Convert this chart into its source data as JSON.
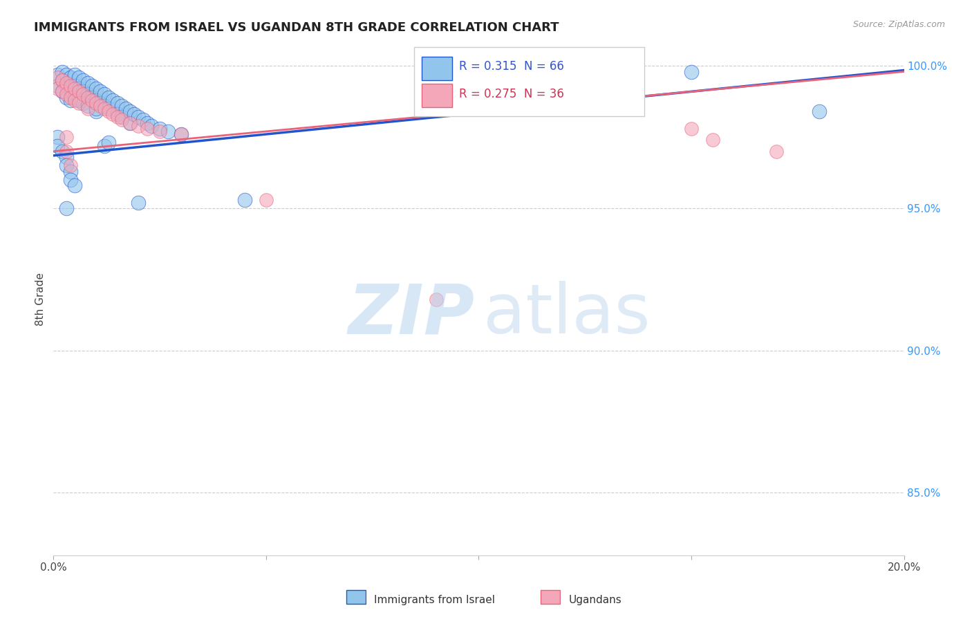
{
  "title": "IMMIGRANTS FROM ISRAEL VS UGANDAN 8TH GRADE CORRELATION CHART",
  "source": "Source: ZipAtlas.com",
  "ylabel": "8th Grade",
  "legend_label1": "Immigrants from Israel",
  "legend_label2": "Ugandans",
  "R1": 0.315,
  "N1": 66,
  "R2": 0.275,
  "N2": 36,
  "blue_color": "#92C5EC",
  "pink_color": "#F4A7B9",
  "blue_line_color": "#2255CC",
  "pink_line_color": "#E8637A",
  "xlim": [
    0.0,
    0.2
  ],
  "ylim": [
    0.828,
    1.008
  ],
  "y_tick_positions": [
    0.85,
    0.9,
    0.95,
    1.0
  ],
  "y_tick_labels": [
    "85.0%",
    "90.0%",
    "95.0%",
    "100.0%"
  ],
  "x_tick_positions": [
    0.0,
    0.05,
    0.1,
    0.15,
    0.2
  ],
  "x_tick_labels": [
    "0.0%",
    "",
    "",
    "",
    "20.0%"
  ],
  "blue_scatter_x": [
    0.001,
    0.001,
    0.002,
    0.002,
    0.002,
    0.003,
    0.003,
    0.003,
    0.004,
    0.004,
    0.004,
    0.005,
    0.005,
    0.005,
    0.006,
    0.006,
    0.006,
    0.007,
    0.007,
    0.007,
    0.008,
    0.008,
    0.008,
    0.009,
    0.009,
    0.01,
    0.01,
    0.01,
    0.011,
    0.011,
    0.012,
    0.012,
    0.013,
    0.013,
    0.014,
    0.015,
    0.015,
    0.016,
    0.016,
    0.017,
    0.018,
    0.018,
    0.019,
    0.02,
    0.021,
    0.022,
    0.023,
    0.025,
    0.027,
    0.03,
    0.001,
    0.001,
    0.002,
    0.003,
    0.003,
    0.004,
    0.004,
    0.005,
    0.01,
    0.012,
    0.003,
    0.013,
    0.02,
    0.045,
    0.15,
    0.18
  ],
  "blue_scatter_y": [
    0.997,
    0.993,
    0.998,
    0.995,
    0.991,
    0.997,
    0.993,
    0.989,
    0.996,
    0.992,
    0.988,
    0.997,
    0.993,
    0.989,
    0.996,
    0.992,
    0.988,
    0.995,
    0.991,
    0.987,
    0.994,
    0.99,
    0.986,
    0.993,
    0.989,
    0.992,
    0.988,
    0.984,
    0.991,
    0.987,
    0.99,
    0.986,
    0.989,
    0.985,
    0.988,
    0.987,
    0.983,
    0.986,
    0.982,
    0.985,
    0.984,
    0.98,
    0.983,
    0.982,
    0.981,
    0.98,
    0.979,
    0.978,
    0.977,
    0.976,
    0.975,
    0.972,
    0.97,
    0.968,
    0.965,
    0.963,
    0.96,
    0.958,
    0.985,
    0.972,
    0.95,
    0.973,
    0.952,
    0.953,
    0.998,
    0.984
  ],
  "pink_scatter_x": [
    0.001,
    0.001,
    0.002,
    0.002,
    0.003,
    0.003,
    0.004,
    0.004,
    0.005,
    0.005,
    0.006,
    0.006,
    0.007,
    0.008,
    0.008,
    0.009,
    0.01,
    0.011,
    0.012,
    0.013,
    0.014,
    0.015,
    0.016,
    0.018,
    0.02,
    0.022,
    0.025,
    0.03,
    0.003,
    0.003,
    0.004,
    0.05,
    0.09,
    0.15,
    0.155,
    0.17
  ],
  "pink_scatter_y": [
    0.996,
    0.992,
    0.995,
    0.991,
    0.994,
    0.99,
    0.993,
    0.989,
    0.992,
    0.988,
    0.991,
    0.987,
    0.99,
    0.989,
    0.985,
    0.988,
    0.987,
    0.986,
    0.985,
    0.984,
    0.983,
    0.982,
    0.981,
    0.98,
    0.979,
    0.978,
    0.977,
    0.976,
    0.975,
    0.97,
    0.965,
    0.953,
    0.918,
    0.978,
    0.974,
    0.97
  ],
  "blue_trendline_x": [
    0.0,
    0.2
  ],
  "blue_trendline_y": [
    0.9685,
    0.9985
  ],
  "pink_trendline_x": [
    0.0,
    0.2
  ],
  "pink_trendline_y": [
    0.97,
    0.998
  ]
}
